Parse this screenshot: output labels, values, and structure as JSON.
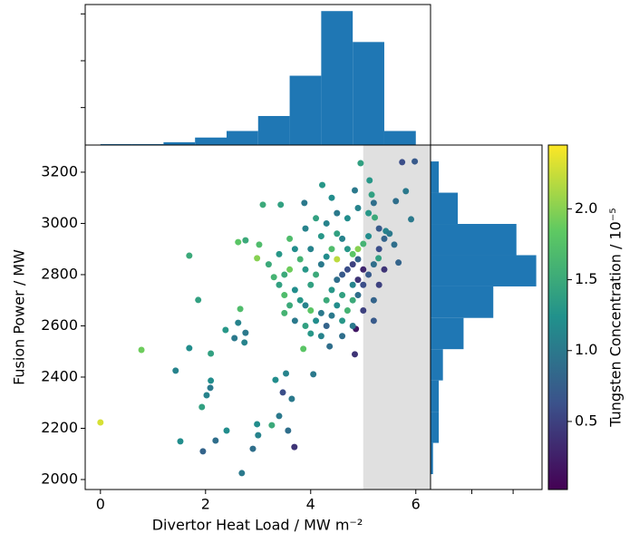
{
  "chart_data": [
    {
      "type": "scatter",
      "xlabel": "Divertor Heat Load / MW m⁻²",
      "ylabel": "Fusion Power / MW",
      "x": [
        0,
        0.78,
        1.69,
        1.86,
        1.69,
        1.43,
        1.52,
        1.95,
        2.02,
        2.09,
        2.1,
        1.93,
        2.19,
        2.1,
        2.4,
        2.38,
        2.55,
        2.62,
        2.66,
        2.69,
        2.76,
        2.74,
        2.62,
        2.76,
        2.9,
        3.0,
        2.98,
        2.98,
        3.02,
        3.09,
        3.26,
        3.4,
        3.33,
        3.57,
        3.69,
        3.64,
        3.47,
        3.53,
        3.43,
        3.86,
        4.05,
        4.36,
        4.84,
        4.86,
        3.88,
        4.22,
        4.84,
        4.95,
        5.74,
        5.98,
        5.12,
        5.16,
        5.62,
        5.81,
        5.91,
        5.59,
        5.67,
        5.29,
        5.43,
        5.22,
        3.3,
        3.5,
        3.6,
        3.4,
        3.7,
        3.8,
        3.9,
        3.6,
        3.5,
        3.7,
        3.9,
        4.0,
        4.1,
        4.2,
        4.3,
        4.4,
        4.5,
        4.6,
        4.7,
        4.8,
        4.9,
        5.0,
        4.9,
        4.8,
        4.6,
        4.5,
        4.4,
        4.3,
        4.6,
        4.7,
        4.8,
        4.9,
        5.0,
        5.1,
        5.2,
        5.3,
        5.4,
        5.5,
        5.3,
        5.1,
        5.0,
        4.9,
        4.8,
        4.7,
        4.6,
        4.5,
        4.4,
        4.3,
        4.2,
        4.1,
        4.0,
        3.9,
        3.8,
        3.7,
        4.0,
        4.2,
        4.3,
        4.5,
        4.7,
        4.9,
        5.1,
        5.2,
        4.4,
        4.1,
        3.9,
        3.6,
        3.4,
        3.2,
        3.5,
        4.0,
        4.2,
        4.6,
        4.8,
        5.0,
        5.2,
        5.3,
        5.4,
        5.2,
        4.5
      ],
      "y": [
        2223,
        2506,
        2874,
        2701,
        2513,
        2425,
        2149,
        2110,
        2329,
        2358,
        2386,
        2283,
        2152,
        2492,
        2191,
        2584,
        2552,
        2612,
        2666,
        2025,
        2573,
        2535,
        2927,
        2934,
        2120,
        2173,
        2216,
        2864,
        2917,
        3073,
        2212,
        2248,
        2389,
        2191,
        2127,
        2315,
        2340,
        2414,
        3073,
        2510,
        2411,
        2520,
        2489,
        2588,
        3080,
        3150,
        3129,
        3235,
        3239,
        3242,
        3168,
        3112,
        3087,
        3126,
        3016,
        2917,
        2847,
        2864,
        2970,
        3023,
        2790,
        2800,
        2820,
        2760,
        2740,
        2700,
        2680,
        2680,
        2650,
        2620,
        2600,
        2570,
        2620,
        2650,
        2700,
        2740,
        2780,
        2800,
        2820,
        2840,
        2860,
        2820,
        2780,
        2760,
        2720,
        2680,
        2640,
        2600,
        2620,
        2660,
        2700,
        2720,
        2760,
        2800,
        2840,
        2900,
        2940,
        2960,
        2980,
        2950,
        2920,
        2900,
        2880,
        2900,
        2940,
        2960,
        2900,
        2870,
        2840,
        2800,
        2760,
        2820,
        2860,
        2900,
        2900,
        2950,
        3000,
        3040,
        3020,
        3060,
        3040,
        3080,
        3100,
        3020,
        2980,
        2940,
        2880,
        2840,
        2720,
        2660,
        2560,
        2560,
        2600,
        2660,
        2700,
        2760,
        2820,
        2620,
        2860
      ],
      "c": [
        2.3,
        1.9,
        1.5,
        1.4,
        1.2,
        1.1,
        1.2,
        0.8,
        1.1,
        1.0,
        1.2,
        1.4,
        0.9,
        1.4,
        1.2,
        1.3,
        1.0,
        1.1,
        1.7,
        1.0,
        1.0,
        1.1,
        1.8,
        1.5,
        0.9,
        1.1,
        1.2,
        2.0,
        1.7,
        1.5,
        1.5,
        1.0,
        1.2,
        0.9,
        0.4,
        1.0,
        0.6,
        1.1,
        1.4,
        1.8,
        1.0,
        0.9,
        0.4,
        0.2,
        1.0,
        1.3,
        1.0,
        1.4,
        0.6,
        0.7,
        1.3,
        1.4,
        0.9,
        1.0,
        1.0,
        0.9,
        0.8,
        1.4,
        1.1,
        1.5,
        1.6,
        1.5,
        1.9,
        1.4,
        1.2,
        1.3,
        1.1,
        1.5,
        1.6,
        1.0,
        1.4,
        1.3,
        1.2,
        1.0,
        1.5,
        1.3,
        0.9,
        0.7,
        0.6,
        0.5,
        0.8,
        0.3,
        0.4,
        1.1,
        1.4,
        1.2,
        1.0,
        0.8,
        1.3,
        1.6,
        1.5,
        0.9,
        0.6,
        0.7,
        0.9,
        0.6,
        0.8,
        1.0,
        0.7,
        1.2,
        1.6,
        2.0,
        1.8,
        1.3,
        1.1,
        1.4,
        1.7,
        1.2,
        1.0,
        1.5,
        1.4,
        1.3,
        1.6,
        1.2,
        1.1,
        1.3,
        1.1,
        1.0,
        1.2,
        1.1,
        1.3,
        0.9,
        1.2,
        1.4,
        1.1,
        1.7,
        1.3,
        1.5,
        1.7,
        1.8,
        1.1,
        0.9,
        1.0,
        0.5,
        0.8,
        0.5,
        0.4,
        0.7,
        2.2
      ],
      "xlim": [
        -0.29,
        6.28
      ],
      "ylim": [
        1961,
        3306
      ],
      "xticks": [
        0,
        2,
        4,
        6
      ],
      "yticks": [
        2000,
        2200,
        2400,
        2600,
        2800,
        3000,
        3200
      ],
      "shade_start": 5,
      "shade_color": "#e0e0e0",
      "colormap": "viridis",
      "clim": [
        0.02,
        2.45
      ],
      "cticks": [
        0.5,
        {
          "value": 1,
          "label": "1.0"
        },
        1.5,
        {
          "value": 2,
          "label": "2.0"
        }
      ],
      "clabel": "Tungsten Concentration / 10⁻⁵"
    },
    {
      "type": "histogram",
      "orientation": "vertical",
      "color": "#1f77b4",
      "bins": [
        0,
        0.6,
        1.2,
        1.8,
        2.4,
        3.0,
        3.6,
        4.2,
        4.8,
        5.4,
        6.0
      ],
      "values": [
        1,
        1,
        3,
        8,
        15,
        31,
        74,
        143,
        110,
        15
      ],
      "ylim": [
        0,
        150
      ],
      "yticks": [
        40,
        90,
        140
      ]
    },
    {
      "type": "histogram",
      "orientation": "horizontal",
      "color": "#1f77b4",
      "bins": [
        2021,
        2143,
        2265,
        2387,
        2509,
        2631,
        2754,
        2876,
        2998,
        3120,
        3242
      ],
      "values": [
        3,
        10,
        10,
        15,
        40,
        76,
        128,
        104,
        33,
        10
      ],
      "xlim": [
        0,
        135
      ],
      "xticks": [
        50,
        100
      ]
    }
  ]
}
